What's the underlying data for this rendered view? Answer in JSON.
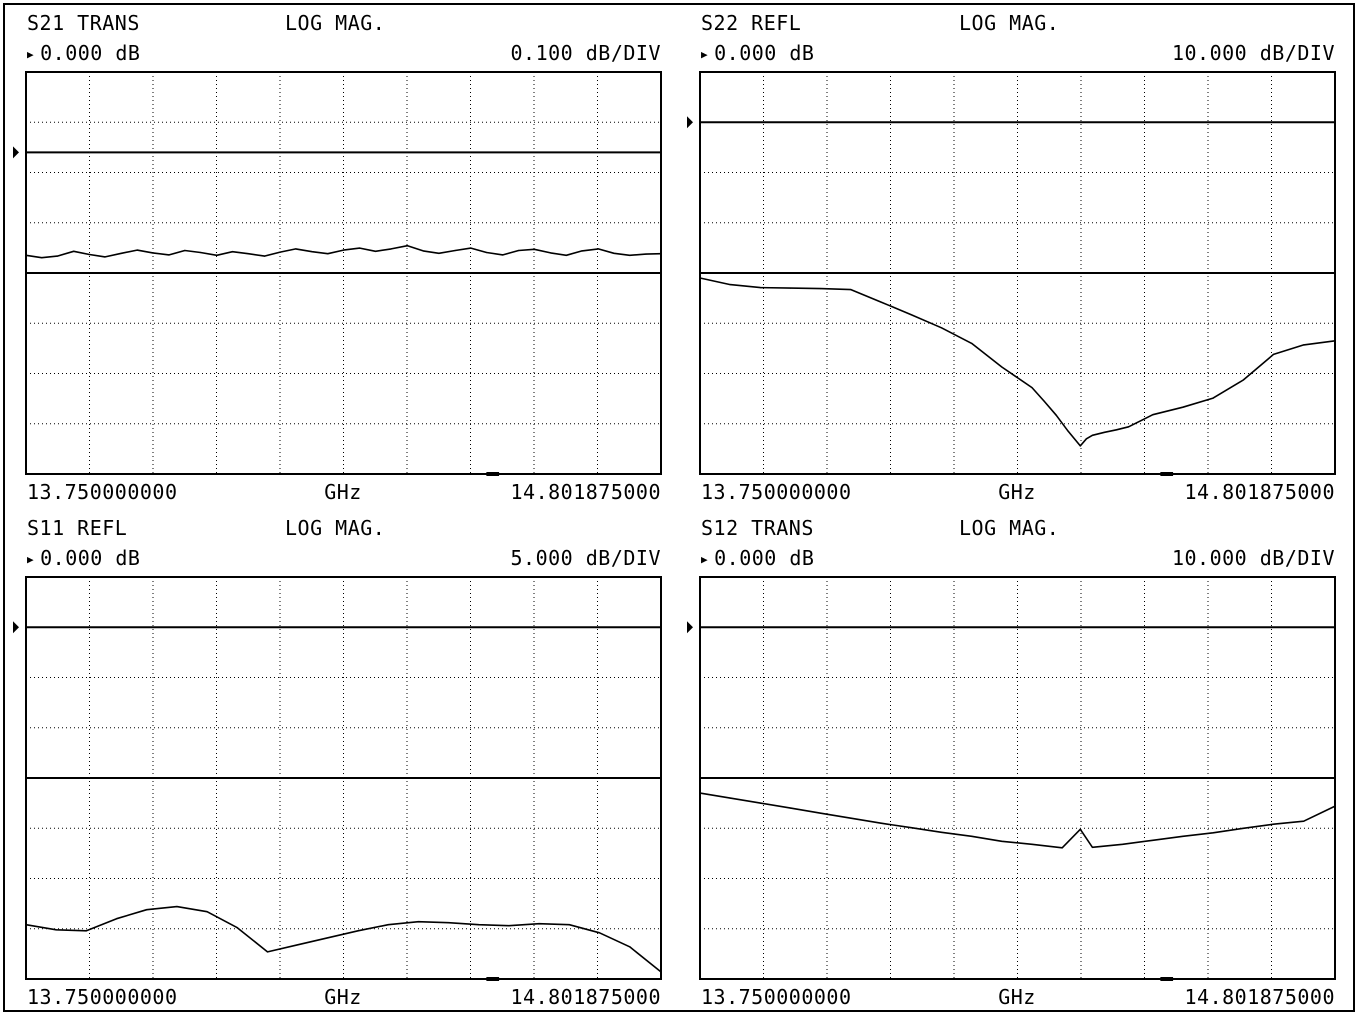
{
  "chart_data": [
    {
      "type": "line",
      "title": "S21 TRANS",
      "format": "LOG MAG.",
      "reference_label": "0.000 dB",
      "scale_label": "0.100 dB/DIV",
      "reference_value_db": 0.0,
      "scale_db_per_div": 0.1,
      "reference_division": 1,
      "ylim": [
        -0.8,
        0.2
      ],
      "x_unit": "GHz",
      "x_start_label": "13.750000000",
      "x_stop_label": "14.801875000",
      "xlim": [
        13.75,
        14.801875
      ],
      "grid": true,
      "series": [
        {
          "x": [
            13.75,
            13.776,
            13.802,
            13.829,
            13.855,
            13.881,
            13.908,
            13.934,
            13.96,
            13.987,
            14.013,
            14.039,
            14.066,
            14.092,
            14.118,
            14.145,
            14.171,
            14.197,
            14.224,
            14.25,
            14.276,
            14.303,
            14.329,
            14.355,
            14.382,
            14.408,
            14.434,
            14.461,
            14.487,
            14.513,
            14.54,
            14.566,
            14.592,
            14.619,
            14.645,
            14.671,
            14.698,
            14.724,
            14.75,
            14.777,
            14.802
          ],
          "values": [
            -0.256,
            -0.262,
            -0.258,
            -0.246,
            -0.254,
            -0.26,
            -0.251,
            -0.243,
            -0.25,
            -0.255,
            -0.244,
            -0.249,
            -0.256,
            -0.247,
            -0.252,
            -0.258,
            -0.248,
            -0.24,
            -0.247,
            -0.252,
            -0.243,
            -0.238,
            -0.246,
            -0.24,
            -0.232,
            -0.245,
            -0.251,
            -0.244,
            -0.238,
            -0.249,
            -0.255,
            -0.244,
            -0.241,
            -0.25,
            -0.256,
            -0.245,
            -0.24,
            -0.251,
            -0.256,
            -0.253,
            -0.252
          ]
        }
      ]
    },
    {
      "type": "line",
      "title": "S22 REFL",
      "format": "LOG MAG.",
      "reference_label": "0.000 dB",
      "scale_label": "10.000 dB/DIV",
      "reference_value_db": 0.0,
      "scale_db_per_div": 10,
      "reference_division": 1,
      "ylim": [
        -70,
        10
      ],
      "x_unit": "GHz",
      "x_start_label": "13.750000000",
      "x_stop_label": "14.801875000",
      "xlim": [
        13.75,
        14.801875
      ],
      "grid": true,
      "series": [
        {
          "x": [
            13.75,
            13.8,
            13.85,
            13.9,
            13.95,
            14.0,
            14.05,
            14.1,
            14.15,
            14.2,
            14.25,
            14.3,
            14.32,
            14.34,
            14.36,
            14.38,
            14.39,
            14.4,
            14.42,
            14.44,
            14.46,
            14.5,
            14.55,
            14.6,
            14.65,
            14.7,
            14.75,
            14.802
          ],
          "values": [
            -31.0,
            -32.3,
            -32.9,
            -33.0,
            -33.1,
            -33.3,
            -35.8,
            -38.3,
            -40.9,
            -44.0,
            -48.7,
            -52.8,
            -55.5,
            -58.3,
            -61.5,
            -64.4,
            -63.0,
            -62.3,
            -61.7,
            -61.2,
            -60.6,
            -58.2,
            -56.7,
            -54.9,
            -51.3,
            -46.2,
            -44.3,
            -43.5
          ]
        }
      ]
    },
    {
      "type": "line",
      "title": "S11 REFL",
      "format": "LOG MAG.",
      "reference_label": "0.000 dB",
      "scale_label": "5.000 dB/DIV",
      "reference_value_db": 0.0,
      "scale_db_per_div": 5,
      "reference_division": 1,
      "ylim": [
        -35,
        5
      ],
      "x_unit": "GHz",
      "x_start_label": "13.750000000",
      "x_stop_label": "14.801875000",
      "xlim": [
        13.75,
        14.801875
      ],
      "grid": true,
      "series": [
        {
          "x": [
            13.75,
            13.8,
            13.85,
            13.9,
            13.95,
            14.0,
            14.05,
            14.1,
            14.15,
            14.2,
            14.25,
            14.3,
            14.35,
            14.4,
            14.45,
            14.5,
            14.55,
            14.6,
            14.65,
            14.7,
            14.75,
            14.802
          ],
          "values": [
            -29.6,
            -30.1,
            -30.2,
            -29.0,
            -28.1,
            -27.8,
            -28.3,
            -29.9,
            -32.3,
            -31.6,
            -30.9,
            -30.2,
            -29.6,
            -29.3,
            -29.4,
            -29.6,
            -29.7,
            -29.5,
            -29.6,
            -30.4,
            -31.8,
            -34.3
          ]
        }
      ]
    },
    {
      "type": "line",
      "title": "S12 TRANS",
      "format": "LOG MAG.",
      "reference_label": "0.000 dB",
      "scale_label": "10.000 dB/DIV",
      "reference_value_db": 0.0,
      "scale_db_per_div": 10,
      "reference_division": 1,
      "ylim": [
        -70,
        10
      ],
      "x_unit": "GHz",
      "x_start_label": "13.750000000",
      "x_stop_label": "14.801875000",
      "xlim": [
        13.75,
        14.801875
      ],
      "grid": true,
      "series": [
        {
          "x": [
            13.75,
            13.8,
            13.85,
            13.9,
            13.95,
            14.0,
            14.05,
            14.1,
            14.15,
            14.2,
            14.25,
            14.3,
            14.35,
            14.38,
            14.4,
            14.45,
            14.5,
            14.55,
            14.6,
            14.65,
            14.7,
            14.75,
            14.802
          ],
          "values": [
            -33.0,
            -34.0,
            -35.0,
            -36.0,
            -37.0,
            -38.0,
            -39.0,
            -39.9,
            -40.8,
            -41.6,
            -42.6,
            -43.2,
            -43.9,
            -40.2,
            -43.8,
            -43.2,
            -42.4,
            -41.6,
            -40.9,
            -40.0,
            -39.2,
            -38.6,
            -35.6
          ]
        }
      ]
    }
  ]
}
